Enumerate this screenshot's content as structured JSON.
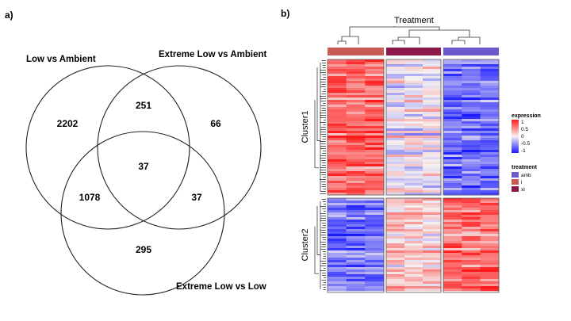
{
  "panel_a": {
    "label": "a)",
    "sets": {
      "low_vs_ambient": "Low vs Ambient",
      "extreme_low_vs_ambient": "Extreme Low vs Ambient",
      "extreme_low_vs_low": "Extreme Low vs Low"
    },
    "counts": {
      "low_only": "2202",
      "low_and_extreme_ambient": "251",
      "extreme_ambient_only": "66",
      "all_three": "37",
      "low_and_extreme_low": "1078",
      "extreme_ambient_and_extreme_low": "37",
      "extreme_low_only": "295"
    }
  },
  "panel_b": {
    "label": "b)",
    "title": "Treatment",
    "clusters": [
      "Cluster1",
      "Cluster2"
    ],
    "treatment_group_colors": [
      "#c95b57",
      "#8b1a4a",
      "#6a5acd"
    ],
    "legend": {
      "expression_title": "expression",
      "expression_ticks": [
        "1",
        "0.5",
        "0",
        "-0.5",
        "-1"
      ],
      "treatment_title": "treatment",
      "treatment_items": [
        {
          "label": "amb",
          "color": "#6a5acd"
        },
        {
          "label": "l",
          "color": "#c95b57"
        },
        {
          "label": "xl",
          "color": "#8b1a4a"
        }
      ]
    },
    "pattern": {
      "cluster1": [
        0.62,
        -0.05,
        -0.62
      ],
      "cluster2": [
        -0.58,
        0.2,
        0.62
      ]
    }
  }
}
